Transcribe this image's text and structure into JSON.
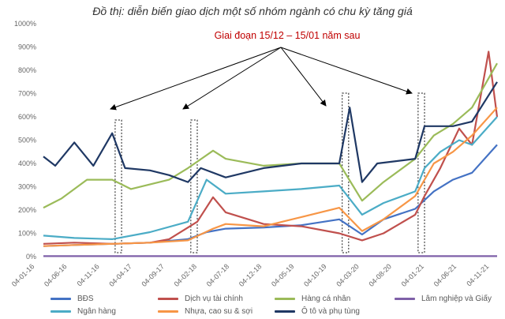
{
  "title": "Đồ thị: diễn biến giao dịch một số nhóm ngành có chu kỳ tăng giá",
  "annotation": "Giai đoạn 15/12 – 15/01 năm sau",
  "chart_data": {
    "type": "line",
    "title": "Đồ thị: diễn biến giao dịch một số nhóm ngành có chu kỳ tăng giá",
    "xlabel": "",
    "ylabel": "",
    "ylim": [
      0,
      1000
    ],
    "y_ticks": [
      "0%",
      "100%",
      "200%",
      "300%",
      "400%",
      "500%",
      "600%",
      "700%",
      "800%",
      "900%",
      "1000%"
    ],
    "x_tick_labels": [
      "04-01-16",
      "04-06-16",
      "04-11-16",
      "04-04-17",
      "04-09-17",
      "04-02-18",
      "04-07-18",
      "04-12-18",
      "04-05-19",
      "04-10-19",
      "04-03-20",
      "04-08-20",
      "04-01-21",
      "04-06-21",
      "04-11-21"
    ],
    "x_start": "2016-01-04",
    "x_end": "2021-12-31",
    "grid": false,
    "legend_position": "bottom",
    "highlight_windows": [
      {
        "from": "2016-12-15",
        "to": "2017-01-15"
      },
      {
        "from": "2017-12-15",
        "to": "2018-01-15"
      },
      {
        "from": "2019-12-15",
        "to": "2020-01-15"
      },
      {
        "from": "2020-12-15",
        "to": "2021-01-15"
      }
    ],
    "series": [
      {
        "name": "BĐS",
        "color": "#4472c4",
        "points": [
          [
            "2016-01-04",
            45
          ],
          [
            "2016-06-01",
            50
          ],
          [
            "2016-12-01",
            55
          ],
          [
            "2017-06-01",
            60
          ],
          [
            "2017-12-01",
            75
          ],
          [
            "2018-03-01",
            105
          ],
          [
            "2018-06-01",
            120
          ],
          [
            "2018-12-01",
            125
          ],
          [
            "2019-06-01",
            135
          ],
          [
            "2019-12-01",
            160
          ],
          [
            "2020-03-20",
            95
          ],
          [
            "2020-07-01",
            160
          ],
          [
            "2020-12-01",
            205
          ],
          [
            "2021-03-01",
            280
          ],
          [
            "2021-06-01",
            330
          ],
          [
            "2021-09-01",
            360
          ],
          [
            "2021-12-31",
            480
          ]
        ]
      },
      {
        "name": "Dịch vụ tài chính",
        "color": "#c0504d",
        "points": [
          [
            "2016-01-04",
            55
          ],
          [
            "2016-06-01",
            60
          ],
          [
            "2016-12-01",
            55
          ],
          [
            "2017-06-01",
            60
          ],
          [
            "2017-09-01",
            75
          ],
          [
            "2018-01-15",
            150
          ],
          [
            "2018-04-01",
            255
          ],
          [
            "2018-06-01",
            190
          ],
          [
            "2018-12-01",
            140
          ],
          [
            "2019-06-01",
            130
          ],
          [
            "2019-12-01",
            100
          ],
          [
            "2020-03-20",
            70
          ],
          [
            "2020-07-01",
            100
          ],
          [
            "2020-12-01",
            180
          ],
          [
            "2021-01-15",
            260
          ],
          [
            "2021-04-01",
            380
          ],
          [
            "2021-07-01",
            550
          ],
          [
            "2021-09-01",
            480
          ],
          [
            "2021-11-20",
            880
          ],
          [
            "2021-12-31",
            600
          ]
        ]
      },
      {
        "name": "Hàng cá nhân",
        "color": "#9bbb59",
        "points": [
          [
            "2016-01-04",
            210
          ],
          [
            "2016-04-01",
            250
          ],
          [
            "2016-08-01",
            330
          ],
          [
            "2016-12-01",
            330
          ],
          [
            "2017-03-01",
            290
          ],
          [
            "2017-09-01",
            330
          ],
          [
            "2017-12-01",
            380
          ],
          [
            "2018-04-01",
            455
          ],
          [
            "2018-06-01",
            420
          ],
          [
            "2018-12-01",
            390
          ],
          [
            "2019-06-01",
            400
          ],
          [
            "2019-12-01",
            400
          ],
          [
            "2020-03-20",
            240
          ],
          [
            "2020-07-01",
            320
          ],
          [
            "2020-12-01",
            420
          ],
          [
            "2021-03-01",
            520
          ],
          [
            "2021-06-01",
            570
          ],
          [
            "2021-09-01",
            640
          ],
          [
            "2021-12-31",
            830
          ]
        ]
      },
      {
        "name": "Lâm nghiệp và Giấy",
        "color": "#7f60a8",
        "points": [
          [
            "2016-01-04",
            2
          ],
          [
            "2021-12-31",
            2
          ]
        ]
      },
      {
        "name": "Ngân hàng",
        "color": "#4bacc6",
        "points": [
          [
            "2016-01-04",
            90
          ],
          [
            "2016-06-01",
            80
          ],
          [
            "2016-12-01",
            75
          ],
          [
            "2017-06-01",
            105
          ],
          [
            "2017-12-01",
            150
          ],
          [
            "2018-03-01",
            330
          ],
          [
            "2018-06-01",
            270
          ],
          [
            "2018-12-01",
            280
          ],
          [
            "2019-06-01",
            290
          ],
          [
            "2019-12-01",
            305
          ],
          [
            "2020-03-20",
            180
          ],
          [
            "2020-07-01",
            230
          ],
          [
            "2020-12-01",
            280
          ],
          [
            "2021-01-15",
            380
          ],
          [
            "2021-04-01",
            450
          ],
          [
            "2021-07-01",
            500
          ],
          [
            "2021-09-01",
            480
          ],
          [
            "2021-12-31",
            600
          ]
        ]
      },
      {
        "name": "Nhựa, cao su & sợi",
        "color": "#f79646",
        "points": [
          [
            "2016-01-04",
            45
          ],
          [
            "2016-06-01",
            50
          ],
          [
            "2016-12-01",
            55
          ],
          [
            "2017-06-01",
            60
          ],
          [
            "2017-12-01",
            70
          ],
          [
            "2018-04-01",
            120
          ],
          [
            "2018-06-01",
            140
          ],
          [
            "2018-12-01",
            130
          ],
          [
            "2019-06-01",
            170
          ],
          [
            "2019-12-01",
            210
          ],
          [
            "2020-03-20",
            110
          ],
          [
            "2020-07-01",
            160
          ],
          [
            "2020-12-01",
            260
          ],
          [
            "2021-03-01",
            400
          ],
          [
            "2021-06-01",
            450
          ],
          [
            "2021-09-01",
            520
          ],
          [
            "2021-12-31",
            640
          ]
        ]
      },
      {
        "name": "Ô tô và phụ tùng",
        "color": "#1f3864",
        "points": [
          [
            "2016-01-04",
            430
          ],
          [
            "2016-03-01",
            390
          ],
          [
            "2016-06-01",
            490
          ],
          [
            "2016-09-01",
            390
          ],
          [
            "2016-12-01",
            530
          ],
          [
            "2017-02-01",
            380
          ],
          [
            "2017-06-01",
            370
          ],
          [
            "2017-09-01",
            350
          ],
          [
            "2017-12-01",
            320
          ],
          [
            "2018-02-01",
            380
          ],
          [
            "2018-06-01",
            340
          ],
          [
            "2018-12-01",
            380
          ],
          [
            "2019-06-01",
            400
          ],
          [
            "2019-12-01",
            400
          ],
          [
            "2020-01-20",
            640
          ],
          [
            "2020-03-20",
            320
          ],
          [
            "2020-06-01",
            400
          ],
          [
            "2020-12-01",
            420
          ],
          [
            "2021-01-15",
            560
          ],
          [
            "2021-06-01",
            560
          ],
          [
            "2021-09-01",
            580
          ],
          [
            "2021-12-31",
            750
          ]
        ]
      }
    ]
  }
}
